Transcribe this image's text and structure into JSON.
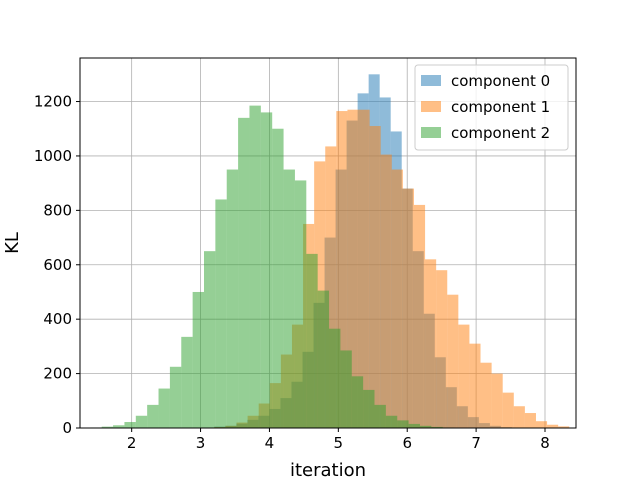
{
  "chart_data": {
    "type": "histogram",
    "xlabel": "iteration",
    "ylabel": "KL",
    "xlim": [
      1.25,
      8.45
    ],
    "ylim": [
      0,
      1360
    ],
    "xticks": [
      2,
      3,
      4,
      5,
      6,
      7,
      8
    ],
    "yticks": [
      0,
      200,
      400,
      600,
      800,
      1000,
      1200
    ],
    "grid": true,
    "legend_position": "top-right",
    "alpha": 0.5,
    "series": [
      {
        "name": "component 0",
        "color": "#1f77b4",
        "bin_start": 3.2,
        "bin_width": 0.16,
        "counts": [
          5,
          8,
          16,
          30,
          45,
          70,
          110,
          170,
          280,
          460,
          700,
          950,
          1130,
          1230,
          1300,
          1215,
          1090,
          880,
          650,
          420,
          260,
          150,
          80,
          40,
          18,
          8,
          3
        ]
      },
      {
        "name": "component 1",
        "color": "#ff7f0e",
        "bin_start": 3.2,
        "bin_width": 0.161,
        "counts": [
          4,
          8,
          20,
          45,
          90,
          165,
          270,
          380,
          750,
          980,
          1035,
          1165,
          1170,
          1170,
          1110,
          1005,
          950,
          880,
          820,
          620,
          580,
          490,
          380,
          310,
          240,
          200,
          130,
          80,
          55,
          25,
          12,
          6
        ]
      },
      {
        "name": "component 2",
        "color": "#2ca02c",
        "bin_start": 1.4,
        "bin_width": 0.165,
        "counts": [
          2,
          5,
          10,
          22,
          45,
          85,
          145,
          225,
          335,
          500,
          650,
          840,
          950,
          1140,
          1185,
          1160,
          1100,
          950,
          910,
          640,
          505,
          365,
          285,
          190,
          140,
          85,
          45,
          28,
          15,
          8,
          4,
          2
        ]
      }
    ]
  }
}
